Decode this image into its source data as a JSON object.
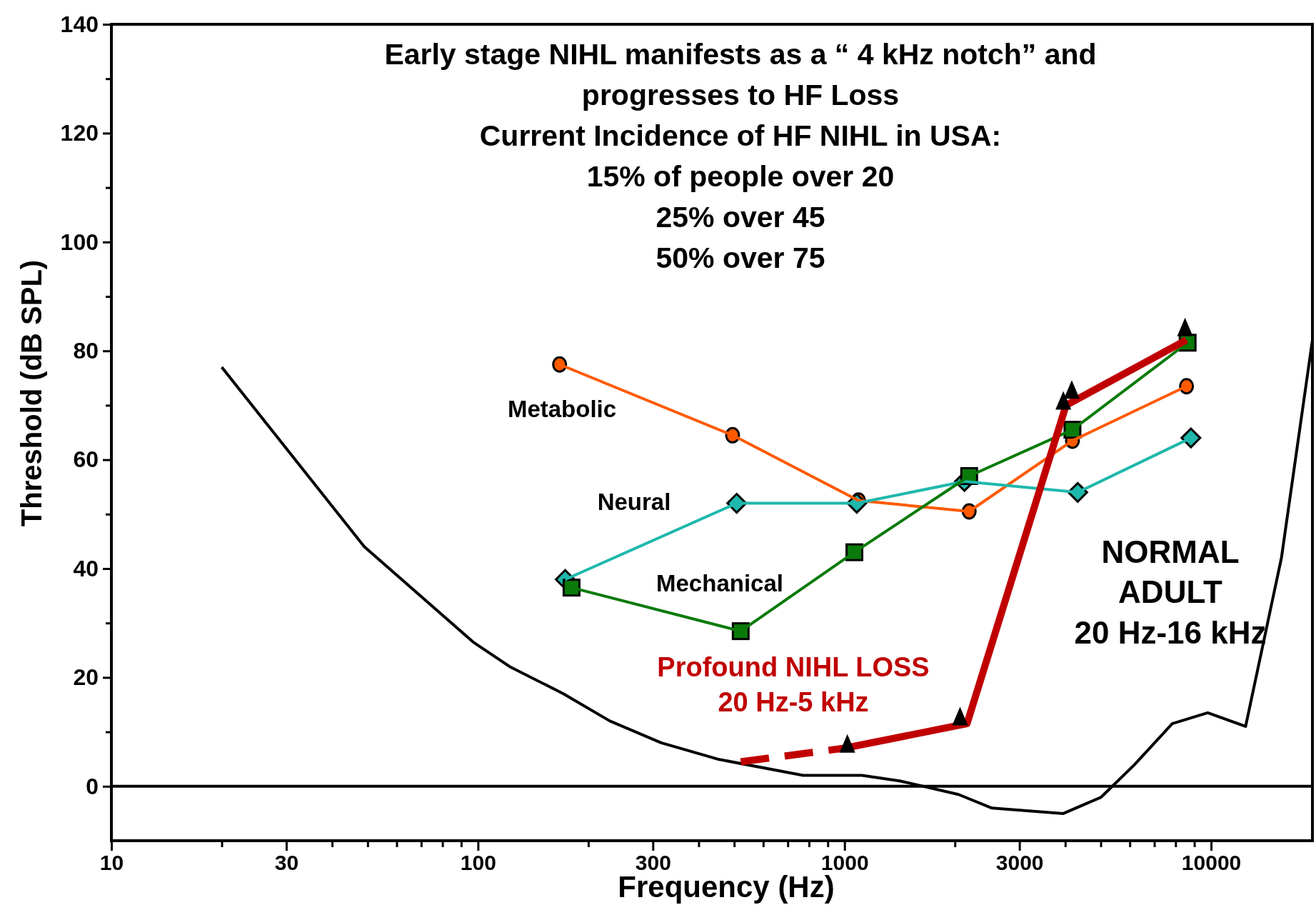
{
  "chart_data": {
    "type": "line",
    "title": "Early stage NIHL manifests as a “ 4 kHz notch” and progresses to HF Loss",
    "annotations": [
      "Current Incidence of  HF NIHL in USA:",
      "15% of people over 20",
      "25% over 45",
      "50% over 75"
    ],
    "xlabel": "Frequency (Hz)",
    "ylabel": "Threshold (dB SPL)",
    "log": "x",
    "xlim": [
      10,
      18900
    ],
    "ylim": [
      -10,
      140
    ],
    "xticks": [
      10,
      {
        "value": 20,
        "label": null
      },
      30,
      {
        "value": 40,
        "label": null
      },
      {
        "value": 50,
        "label": null
      },
      {
        "value": 60,
        "label": null
      },
      {
        "value": 70,
        "label": null
      },
      {
        "value": 80,
        "label": null
      },
      {
        "value": 90,
        "label": null
      },
      100,
      {
        "value": 200,
        "label": null
      },
      300,
      {
        "value": 400,
        "label": null
      },
      {
        "value": 500,
        "label": null
      },
      {
        "value": 600,
        "label": null
      },
      {
        "value": 700,
        "label": null
      },
      {
        "value": 800,
        "label": null
      },
      {
        "value": 900,
        "label": null
      },
      1000,
      {
        "value": 2000,
        "label": null
      },
      3000,
      {
        "value": 4000,
        "label": null
      },
      {
        "value": 5000,
        "label": null
      },
      {
        "value": 6000,
        "label": null
      },
      {
        "value": 7000,
        "label": null
      },
      {
        "value": 8000,
        "label": null
      },
      {
        "value": 9000,
        "label": null
      },
      10000
    ],
    "yticks": [
      0,
      {
        "value": 10,
        "label": null
      },
      20,
      {
        "value": 30,
        "label": null
      },
      40,
      {
        "value": 50,
        "label": null
      },
      60,
      {
        "value": 70,
        "label": null
      },
      80,
      {
        "value": 90,
        "label": null
      },
      100,
      {
        "value": 110,
        "label": null
      },
      120,
      {
        "value": 130,
        "label": null
      },
      140
    ],
    "ref_lines": [
      {
        "axis": "y",
        "value": 0,
        "label": null,
        "color": "#000000"
      }
    ],
    "series": [
      {
        "name": "NORMAL\nADULT\n20 Hz-16 kHz",
        "color": "#000000",
        "marker": "none",
        "x": [
          20,
          49,
          97,
          122,
          171,
          229,
          316,
          450,
          771,
          1115,
          1412,
          2046,
          2525,
          3953,
          5012,
          6185,
          7834,
          9790,
          12420,
          15560,
          18900
        ],
        "values": [
          77,
          44,
          26.5,
          22,
          17,
          12,
          8,
          5,
          2,
          2,
          1,
          -1.5,
          -4,
          -5,
          -2,
          4,
          11.5,
          13.5,
          11,
          42,
          82
        ]
      },
      {
        "name": "Metabolic",
        "color": "#ff5a00",
        "marker": "circle",
        "x": [
          167,
          495,
          1092,
          2188,
          4186,
          8570
        ],
        "values": [
          77.5,
          64.5,
          52.5,
          50.5,
          63.5,
          73.5
        ]
      },
      {
        "name": "Neural",
        "color": "#1fb8ac",
        "marker": "diamond",
        "x": [
          173,
          508,
          1080,
          2124,
          4327,
          8810
        ],
        "values": [
          38,
          52,
          52,
          56,
          54,
          64
        ]
      },
      {
        "name": "Mechanical",
        "color": "#0a7a0a",
        "marker": "square",
        "x": [
          180,
          521,
          1064,
          2188,
          4186,
          8630
        ],
        "values": [
          36.5,
          28.5,
          43,
          57,
          65.5,
          81.5
        ]
      },
      {
        "color": "#c00000",
        "marker": "none",
        "line_style": "dashed",
        "x": [
          521,
          1000
        ],
        "values": [
          4.5,
          7
        ]
      },
      {
        "name": "Profound NIHL LOSS\n20 Hz-5 kHz",
        "color": "#c00000",
        "marker": "none",
        "line_style": "solid",
        "x": [
          1000,
          2158,
          4020,
          8570
        ],
        "values": [
          7,
          11.5,
          70,
          82
        ]
      },
      {
        "type": "scatter",
        "color": "#000000",
        "marker": "triangle",
        "x": [
          1018,
          2066,
          3953,
          4168,
          8490
        ],
        "values": [
          7.5,
          12.5,
          70.5,
          72.5,
          84
        ]
      }
    ]
  }
}
